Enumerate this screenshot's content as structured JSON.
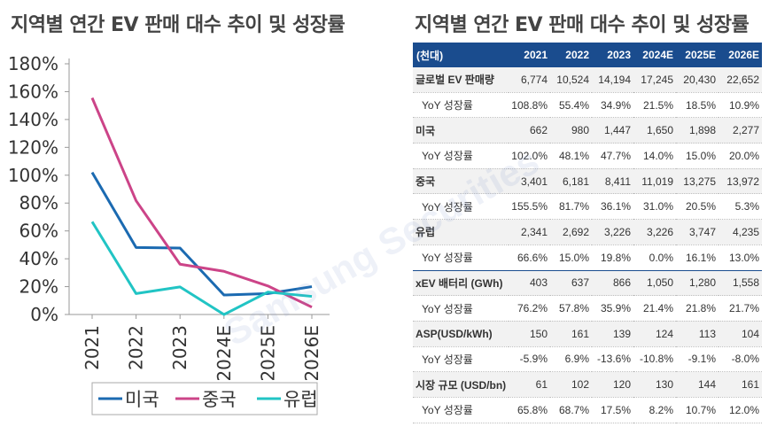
{
  "left_title": "지역별 연간 EV 판매 대수 추이 및 성장률",
  "right_title": "지역별 연간 EV 판매 대수 추이 및 성장률",
  "watermark": "Samsung Securities",
  "colors": {
    "us": "#1b6ab1",
    "china": "#cc4488",
    "europe": "#21c4c4",
    "header_bg": "#1a4c8e"
  },
  "chart_data": {
    "type": "line",
    "categories": [
      "2021",
      "2022",
      "2023",
      "2024E",
      "2025E",
      "2026E"
    ],
    "y_tick_labels": [
      "0%",
      "20%",
      "40%",
      "60%",
      "80%",
      "100%",
      "120%",
      "140%",
      "160%",
      "180%"
    ],
    "ylim": [
      0,
      180
    ],
    "grid": false,
    "legend_position": "bottom",
    "series": [
      {
        "name": "미국",
        "values": [
          102.0,
          48.1,
          47.7,
          14.0,
          15.0,
          20.0
        ]
      },
      {
        "name": "중국",
        "values": [
          155.5,
          81.7,
          36.1,
          31.0,
          20.5,
          5.3
        ]
      },
      {
        "name": "유럽",
        "values": [
          66.6,
          15.0,
          19.8,
          0.0,
          16.1,
          13.0
        ]
      }
    ]
  },
  "table": {
    "header": [
      "(천대)",
      "2021",
      "2022",
      "2023",
      "2024E",
      "2025E",
      "2026E"
    ],
    "rows": [
      {
        "label": "글로벌 EV 판매량",
        "kind": "main",
        "values": [
          "6,774",
          "10,524",
          "14,194",
          "17,245",
          "20,430",
          "22,652"
        ]
      },
      {
        "label": "YoY 성장률",
        "kind": "sub",
        "values": [
          "108.8%",
          "55.4%",
          "34.9%",
          "21.5%",
          "18.5%",
          "10.9%"
        ]
      },
      {
        "label": "미국",
        "kind": "main",
        "values": [
          "662",
          "980",
          "1,447",
          "1,650",
          "1,898",
          "2,277"
        ]
      },
      {
        "label": "YoY 성장률",
        "kind": "sub",
        "values": [
          "102.0%",
          "48.1%",
          "47.7%",
          "14.0%",
          "15.0%",
          "20.0%"
        ]
      },
      {
        "label": "중국",
        "kind": "main",
        "values": [
          "3,401",
          "6,181",
          "8,411",
          "11,019",
          "13,275",
          "13,972"
        ]
      },
      {
        "label": "YoY 성장률",
        "kind": "sub",
        "values": [
          "155.5%",
          "81.7%",
          "36.1%",
          "31.0%",
          "20.5%",
          "5.3%"
        ]
      },
      {
        "label": "유럽",
        "kind": "main",
        "values": [
          "2,341",
          "2,692",
          "3,226",
          "3,226",
          "3,747",
          "4,235"
        ]
      },
      {
        "label": "YoY 성장률",
        "kind": "sub",
        "values": [
          "66.6%",
          "15.0%",
          "19.8%",
          "0.0%",
          "16.1%",
          "13.0%"
        ]
      },
      {
        "label": "xEV 배터리 (GWh)",
        "kind": "main",
        "sep": true,
        "values": [
          "403",
          "637",
          "866",
          "1,050",
          "1,280",
          "1,558"
        ]
      },
      {
        "label": "YoY 성장률",
        "kind": "sub",
        "values": [
          "76.2%",
          "57.8%",
          "35.9%",
          "21.4%",
          "21.8%",
          "21.7%"
        ]
      },
      {
        "label": "ASP(USD/kWh)",
        "kind": "main",
        "values": [
          "150",
          "161",
          "139",
          "124",
          "113",
          "104"
        ]
      },
      {
        "label": "YoY 성장률",
        "kind": "sub",
        "values": [
          "-5.9%",
          "6.9%",
          "-13.6%",
          "-10.8%",
          "-9.1%",
          "-8.0%"
        ]
      },
      {
        "label": "시장 규모 (USD/bn)",
        "kind": "main",
        "values": [
          "61",
          "102",
          "120",
          "130",
          "144",
          "161"
        ]
      },
      {
        "label": "YoY 성장률",
        "kind": "sub",
        "values": [
          "65.8%",
          "68.7%",
          "17.5%",
          "8.2%",
          "10.7%",
          "12.0%"
        ]
      }
    ]
  }
}
